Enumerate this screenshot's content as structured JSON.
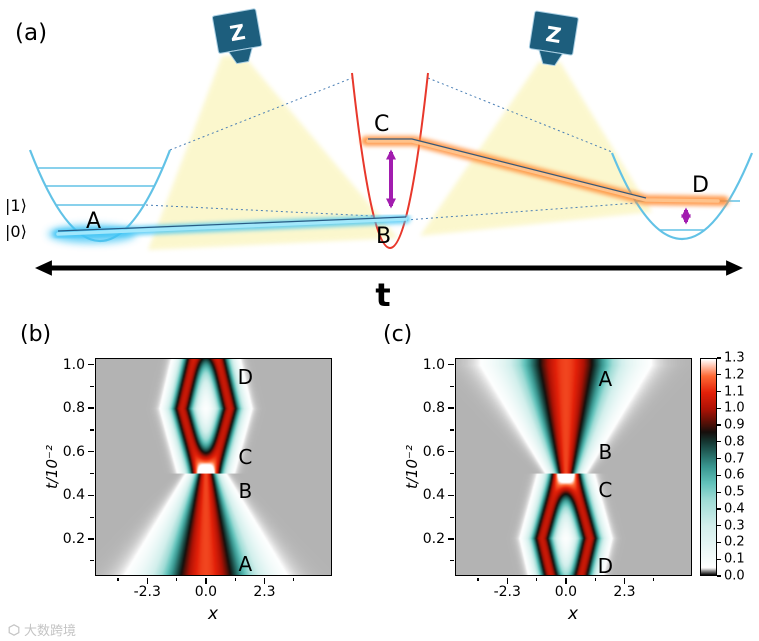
{
  "panel_labels": {
    "a": "(a)",
    "b": "(b)",
    "c": "(c)"
  },
  "watermark": {
    "text": "大数跨境"
  },
  "schematic": {
    "laser_label": "Z",
    "state_label_1": "|1⟩",
    "state_label_0": "|0⟩",
    "label_A": "A",
    "label_B": "B",
    "label_C": "C",
    "label_D": "D",
    "time_axis_label": "t",
    "colors": {
      "well_blue": "#62c2e6",
      "well_red": "#e8382c",
      "glow_blue": "#3fc4f5",
      "glow_blue_core": "#a5e9fc",
      "glow_orange": "#ff8a33",
      "glow_orange_core": "#ffc48d",
      "arrow_purple": "#a21caf",
      "beam_yellow": "#f9f3b0",
      "laser_body": "#1d5e7d",
      "laser_edge": "#aacfe3",
      "trajectory_line": "#1f4e79",
      "dotted_line": "#4a7fb5"
    }
  },
  "chart_data": [
    {
      "type": "heatmap",
      "panel": "b",
      "xlabel": "x",
      "ylabel": "t/10⁻²",
      "xlim": [
        -4.35,
        4.95
      ],
      "ylim": [
        0.03,
        1.03
      ],
      "xticks": [
        "-2.3",
        "0.0",
        "2.3"
      ],
      "xticks_minor": [
        -3.45,
        -1.15,
        1.15,
        3.45
      ],
      "yticks": [
        "0.2",
        "0.4",
        "0.6",
        "0.8",
        "1.0"
      ],
      "yticks_minor": [
        0.1,
        0.3,
        0.5,
        0.7,
        0.9
      ],
      "grid": false,
      "time_direction": "forward",
      "annotations": [
        {
          "label": "D",
          "x": 1.55,
          "t": 0.945
        },
        {
          "label": "C",
          "x": 1.55,
          "t": 0.575
        },
        {
          "label": "B",
          "x": 1.55,
          "t": 0.42
        },
        {
          "label": "A",
          "x": 1.55,
          "t": 0.085
        }
      ],
      "model": {
        "split_t": 0.5,
        "width_start": 1.9,
        "width_end": 0.45,
        "amplitude": 1.15,
        "lobe_width": 0.5,
        "lobe_amplitude": 1.05,
        "sep_start": 0.25,
        "sep_peak": 0.95,
        "sep_peak_t": 0.8,
        "sep_end": 0.55
      }
    },
    {
      "type": "heatmap",
      "panel": "c",
      "xlabel": "x",
      "ylabel": "t/10⁻²",
      "xlim": [
        -4.35,
        4.95
      ],
      "ylim": [
        0.03,
        1.03
      ],
      "xticks": [
        "-2.3",
        "0.0",
        "2.3"
      ],
      "xticks_minor": [
        -3.45,
        -1.15,
        1.15,
        3.45
      ],
      "yticks": [
        "0.2",
        "0.4",
        "0.6",
        "0.8",
        "1.0"
      ],
      "yticks_minor": [
        0.1,
        0.3,
        0.5,
        0.7,
        0.9
      ],
      "grid": false,
      "time_direction": "reversed",
      "annotations": [
        {
          "label": "A",
          "x": 1.55,
          "t": 0.935
        },
        {
          "label": "B",
          "x": 1.55,
          "t": 0.6
        },
        {
          "label": "C",
          "x": 1.55,
          "t": 0.425
        },
        {
          "label": "D",
          "x": 1.55,
          "t": 0.075
        }
      ],
      "model": {
        "split_t": 0.5,
        "width_start": 1.9,
        "width_end": 0.45,
        "amplitude": 1.15,
        "lobe_width": 0.5,
        "lobe_amplitude": 1.05,
        "sep_start": 0.25,
        "sep_peak": 0.95,
        "sep_peak_t": 0.8,
        "sep_end": 0.55
      }
    }
  ],
  "colorbar": {
    "vmin": 0.0,
    "vmax": 1.3,
    "ticks": [
      "1.3",
      "1.2",
      "1.1",
      "1.0",
      "0.9",
      "0.8",
      "0.7",
      "0.6",
      "0.5",
      "0.4",
      "0.3",
      "0.2",
      "0.1",
      "0.0"
    ],
    "background_color": "#b3b3b3",
    "colormap": [
      [
        0.0,
        "#101010"
      ],
      [
        0.04,
        "#ffffff"
      ],
      [
        0.3,
        "#d2efec"
      ],
      [
        0.45,
        "#9fdcd6"
      ],
      [
        0.55,
        "#63c3bb"
      ],
      [
        0.65,
        "#3a9891"
      ],
      [
        0.73,
        "#256660"
      ],
      [
        0.8,
        "#153833"
      ],
      [
        0.86,
        "#160f0c"
      ],
      [
        0.92,
        "#5a1007"
      ],
      [
        1.0,
        "#ad1205"
      ],
      [
        1.1,
        "#e32109"
      ],
      [
        1.2,
        "#ff6a35"
      ],
      [
        1.3,
        "#ffffff"
      ]
    ]
  }
}
